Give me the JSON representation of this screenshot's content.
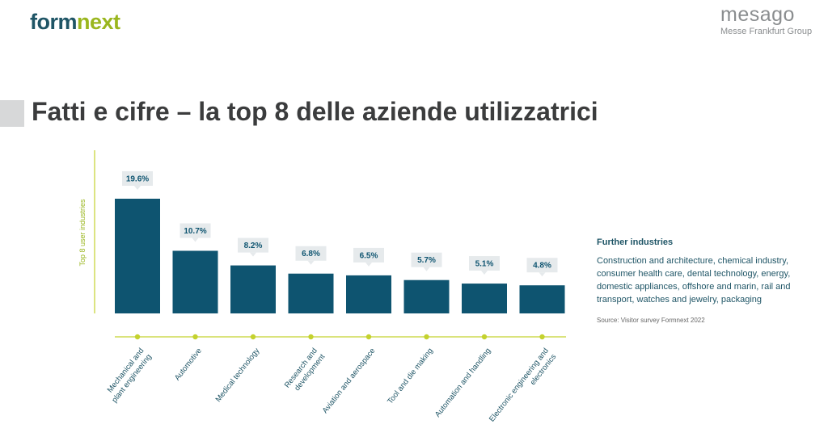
{
  "header": {
    "logo_left_part1": "form",
    "logo_left_part2": "next",
    "logo_right_name": "mesago",
    "logo_right_group": "Messe Frankfurt Group"
  },
  "slide": {
    "title": "Fatti e cifre – la top 8 delle aziende utilizzatrici"
  },
  "chart_data": {
    "type": "bar",
    "ylabel": "Top 8 user industries",
    "categories": [
      "Mechanical and plant engineering",
      "Automotive",
      "Medical technology",
      "Research and development",
      "Aviation and aerospace",
      "Tool and die making",
      "Automation and handling",
      "Electronic engineering and electronics"
    ],
    "category_lines": [
      [
        "Mechanical and",
        "plant engineering"
      ],
      [
        "Automotive"
      ],
      [
        "Medical technology"
      ],
      [
        "Research and",
        "development"
      ],
      [
        "Aviation and aerospace"
      ],
      [
        "Tool and die making"
      ],
      [
        "Automation and handling"
      ],
      [
        "Electronic engineering and",
        "electronics"
      ]
    ],
    "values": [
      19.6,
      10.7,
      8.2,
      6.8,
      6.5,
      5.7,
      5.1,
      4.8
    ],
    "value_labels": [
      "19.6%",
      "10.7%",
      "8.2%",
      "6.8%",
      "6.5%",
      "5.7%",
      "5.1%",
      "4.8%"
    ],
    "ylim": [
      0,
      19.6
    ],
    "colors": {
      "bar": "#0e5470",
      "axis": "#c4d22e",
      "label_box": "#e6eaec",
      "label_text": "#0e5470"
    }
  },
  "further": {
    "heading": "Further industries",
    "text": "Construction and architecture, chemical industry, consumer health care, dental technology, energy, domestic appliances, offshore and marin, rail and transport, watches and jewelry, packaging",
    "source": "Source: Visitor survey Formnext 2022"
  }
}
